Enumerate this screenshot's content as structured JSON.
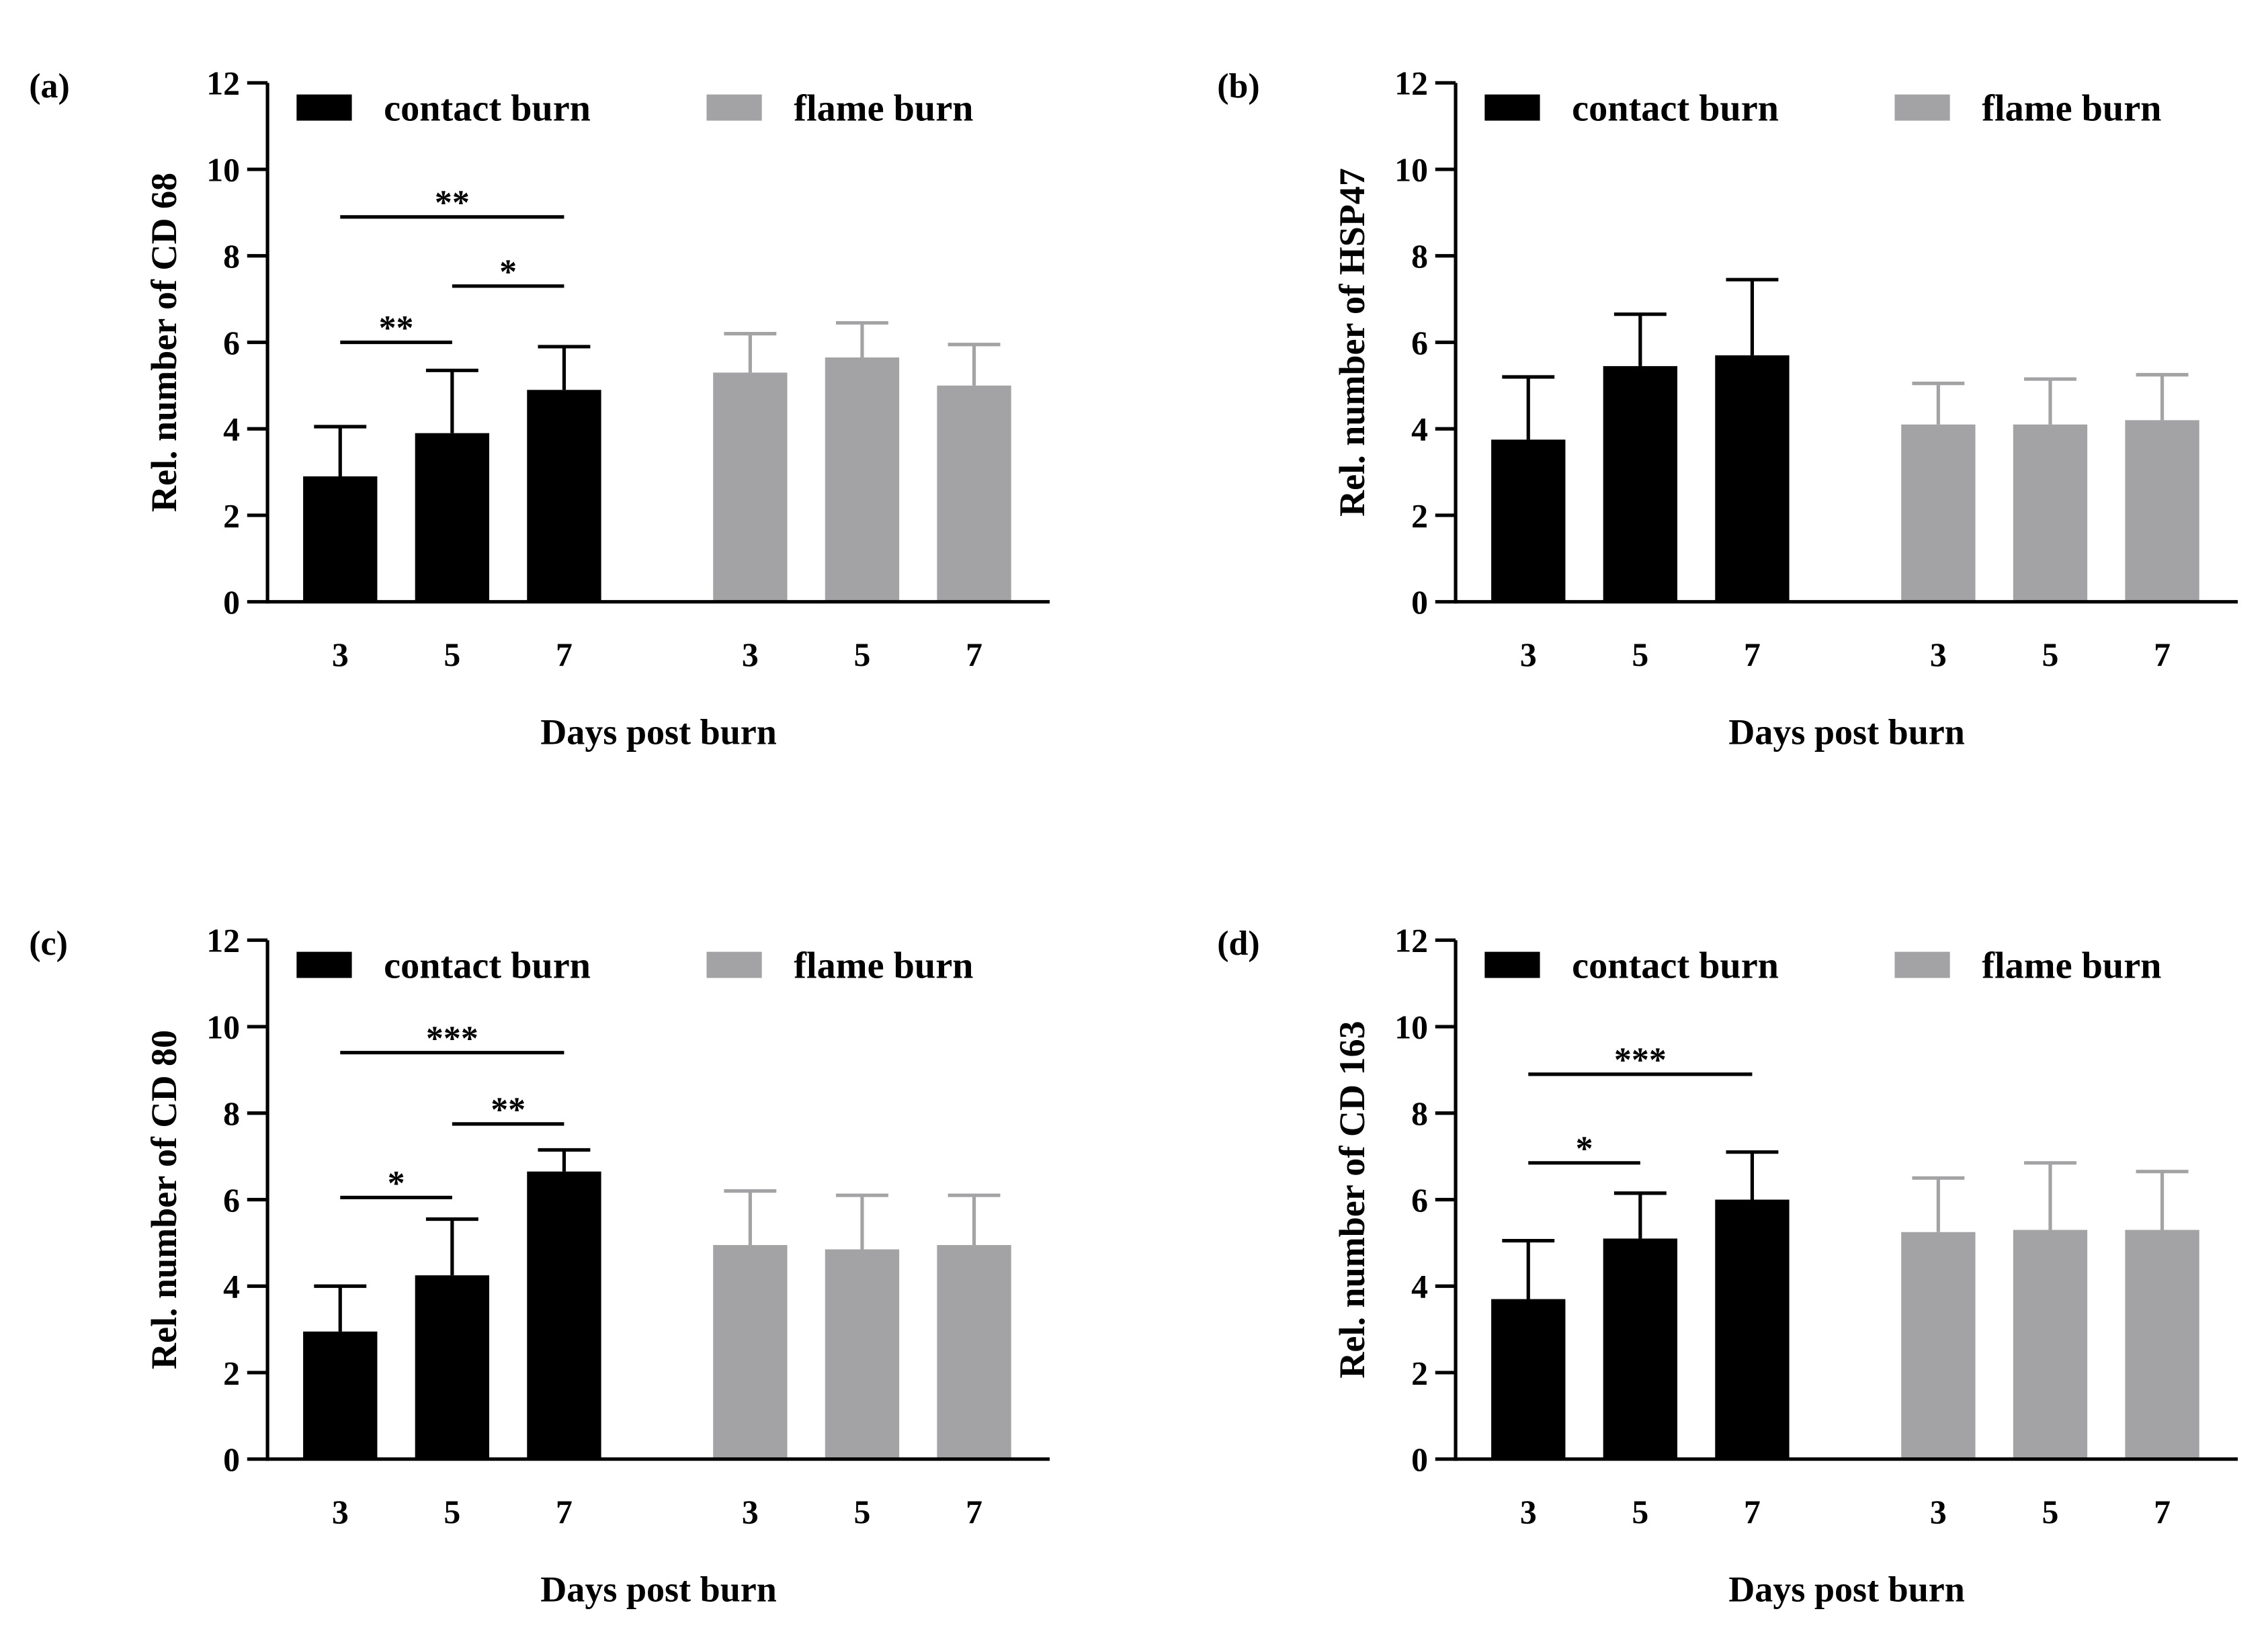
{
  "colors": {
    "contact": "#000000",
    "flame": "#a3a3a6",
    "axis": "#000000"
  },
  "chart_data": [
    {
      "type": "bar",
      "panel_label": "(a)",
      "ylabel": "Rel. number of CD 68",
      "xlabel": "Days post burn",
      "ylim": [
        0,
        12
      ],
      "yticks": [
        "0",
        "2",
        "4",
        "6",
        "8",
        "10",
        "12"
      ],
      "categories": [
        "3",
        "5",
        "7"
      ],
      "series": [
        {
          "name": "contact burn",
          "values": [
            2.9,
            3.9,
            4.9
          ],
          "errors": [
            1.15,
            1.45,
            1.0
          ]
        },
        {
          "name": "flame burn",
          "values": [
            5.3,
            5.65,
            5.0
          ],
          "errors": [
            0.9,
            0.8,
            0.95
          ]
        }
      ],
      "significance": [
        {
          "from": 0,
          "to": 1,
          "y": 6.0,
          "label": "**"
        },
        {
          "from": 1,
          "to": 2,
          "y": 7.3,
          "label": "*"
        },
        {
          "from": 0,
          "to": 2,
          "y": 8.9,
          "label": "**"
        }
      ]
    },
    {
      "type": "bar",
      "panel_label": "(b)",
      "ylabel": "Rel. number of HSP47",
      "xlabel": "Days post burn",
      "ylim": [
        0,
        12
      ],
      "yticks": [
        "0",
        "2",
        "4",
        "6",
        "8",
        "10",
        "12"
      ],
      "categories": [
        "3",
        "5",
        "7"
      ],
      "series": [
        {
          "name": "contact burn",
          "values": [
            3.75,
            5.45,
            5.7
          ],
          "errors": [
            1.45,
            1.2,
            1.75
          ]
        },
        {
          "name": "flame burn",
          "values": [
            4.1,
            4.1,
            4.2
          ],
          "errors": [
            0.95,
            1.05,
            1.05
          ]
        }
      ],
      "significance": []
    },
    {
      "type": "bar",
      "panel_label": "(c)",
      "ylabel": "Rel. number of CD 80",
      "xlabel": "Days post burn",
      "ylim": [
        0,
        12
      ],
      "yticks": [
        "0",
        "2",
        "4",
        "6",
        "8",
        "10",
        "12"
      ],
      "categories": [
        "3",
        "5",
        "7"
      ],
      "series": [
        {
          "name": "contact burn",
          "values": [
            2.95,
            4.25,
            6.65
          ],
          "errors": [
            1.05,
            1.3,
            0.5
          ]
        },
        {
          "name": "flame burn",
          "values": [
            4.95,
            4.85,
            4.95
          ],
          "errors": [
            1.25,
            1.25,
            1.15
          ]
        }
      ],
      "significance": [
        {
          "from": 0,
          "to": 1,
          "y": 6.05,
          "label": "*"
        },
        {
          "from": 1,
          "to": 2,
          "y": 7.75,
          "label": "**"
        },
        {
          "from": 0,
          "to": 2,
          "y": 9.4,
          "label": "***"
        }
      ]
    },
    {
      "type": "bar",
      "panel_label": "(d)",
      "ylabel": "Rel. number of CD 163",
      "xlabel": "Days post burn",
      "ylim": [
        0,
        12
      ],
      "yticks": [
        "0",
        "2",
        "4",
        "6",
        "8",
        "10",
        "12"
      ],
      "categories": [
        "3",
        "5",
        "7"
      ],
      "series": [
        {
          "name": "contact burn",
          "values": [
            3.7,
            5.1,
            6.0
          ],
          "errors": [
            1.35,
            1.05,
            1.1
          ]
        },
        {
          "name": "flame burn",
          "values": [
            5.25,
            5.3,
            5.3
          ],
          "errors": [
            1.25,
            1.55,
            1.35
          ]
        }
      ],
      "significance": [
        {
          "from": 0,
          "to": 1,
          "y": 6.85,
          "label": "*"
        },
        {
          "from": 0,
          "to": 2,
          "y": 8.9,
          "label": "***"
        }
      ]
    }
  ]
}
